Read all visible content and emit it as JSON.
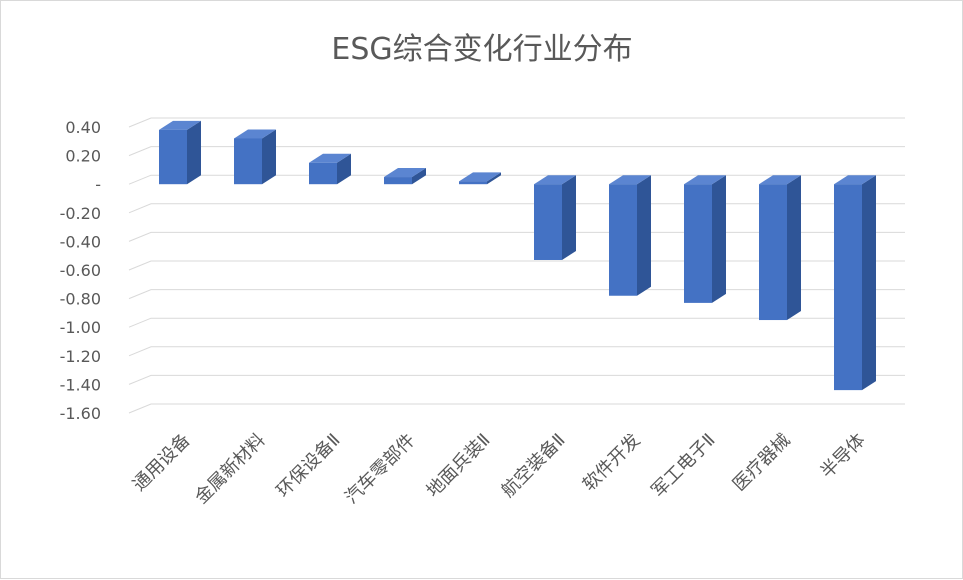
{
  "chart_data": {
    "type": "bar",
    "title": "ESG综合变化行业分布",
    "categories": [
      "通用设备",
      "金属新材料",
      "环保设备Ⅱ",
      "汽车零部件",
      "地面兵装Ⅱ",
      "航空装备Ⅱ",
      "软件开发",
      "军工电子Ⅱ",
      "医疗器械",
      "半导体"
    ],
    "values": [
      0.38,
      0.32,
      0.15,
      0.05,
      0.02,
      -0.53,
      -0.78,
      -0.83,
      -0.95,
      -1.44
    ],
    "ylim": [
      -1.6,
      0.4
    ],
    "yticks": [
      0.4,
      0.2,
      0,
      -0.2,
      -0.4,
      -0.6,
      -0.8,
      -1.0,
      -1.2,
      -1.4,
      -1.6
    ],
    "ytick_labels": [
      "0.40",
      "0.20",
      "-",
      "-0.20",
      "-0.40",
      "-0.60",
      "-0.80",
      "-1.00",
      "-1.20",
      "-1.40",
      "-1.60"
    ],
    "xlabel": "",
    "ylabel": "",
    "grid": true,
    "legend": "none",
    "colors": {
      "bar_front": "#4472C4",
      "bar_side": "#2F5597",
      "bar_top": "#5B85D1",
      "grid": "#d9d9d9",
      "text": "#595959"
    }
  }
}
